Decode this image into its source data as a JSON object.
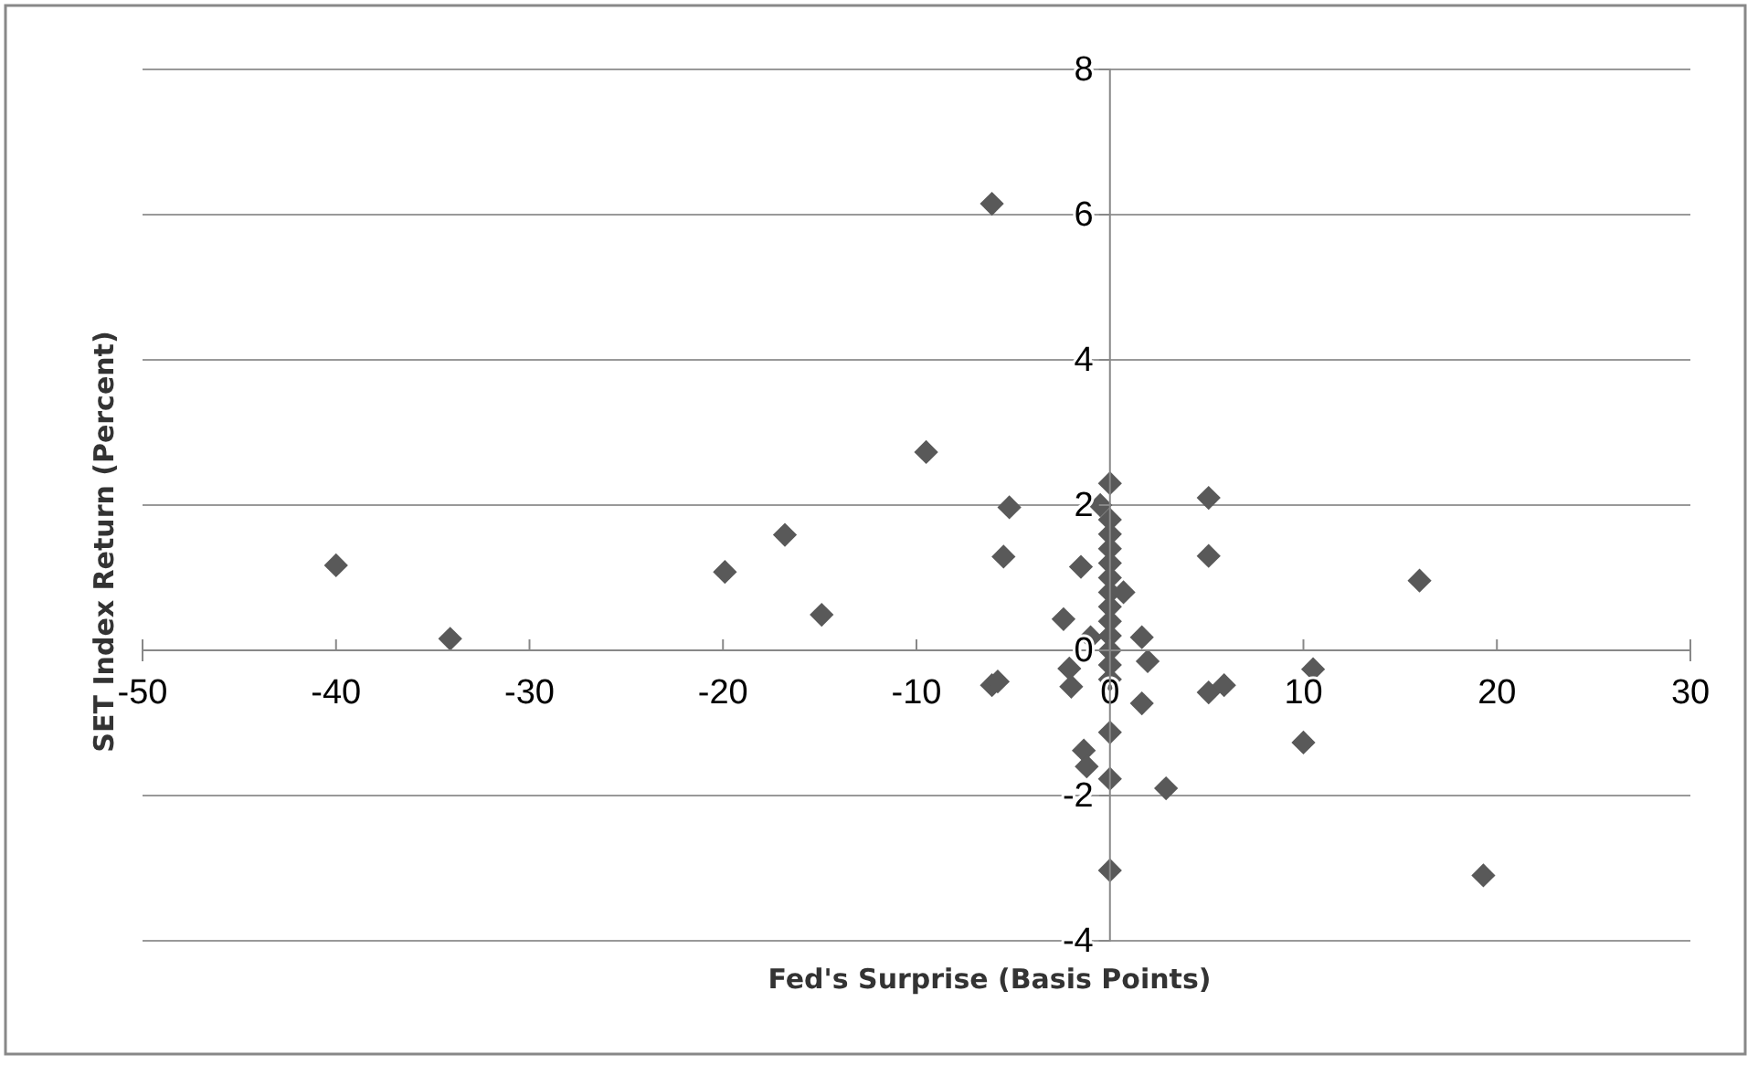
{
  "chart_data": {
    "type": "scatter",
    "xlabel": "Fed's Surprise (Basis Points)",
    "ylabel": "SET Index Return (Percent)",
    "xlim": [
      -50,
      30
    ],
    "xticks": [
      -50,
      -40,
      -30,
      -20,
      -10,
      0,
      10,
      20,
      30
    ],
    "ylim": [
      -4,
      8
    ],
    "yticks": [
      -4,
      -2,
      0,
      2,
      4,
      6,
      8
    ],
    "grid": "y",
    "marker": "diamond",
    "series": [
      {
        "color": "#595959",
        "x": [
          -40,
          -34.1,
          -19.9,
          -16.8,
          -14.9,
          -9.5,
          -6.1,
          -5.2,
          -5.5,
          -6.1,
          -5.8,
          0,
          -0.5,
          5.1,
          5.1,
          -1.5,
          0,
          0,
          0,
          0,
          0,
          0,
          0,
          0,
          0,
          0,
          0,
          0,
          0.7,
          -2.4,
          -1.0,
          1.65,
          1.95,
          -2.1,
          -2.0,
          1.65,
          0,
          -1.35,
          -1.2,
          0,
          2.9,
          0,
          16,
          5.1,
          5.9,
          10.5,
          10.0,
          19.3
        ],
        "values": [
          1.17,
          0.16,
          1.08,
          1.59,
          0.49,
          2.73,
          6.15,
          1.97,
          1.29,
          -0.48,
          -0.43,
          2.3,
          2.0,
          2.1,
          1.3,
          1.15,
          1.8,
          1.6,
          1.4,
          1.2,
          1.0,
          0.8,
          0.6,
          0.4,
          0.2,
          0.0,
          -0.2,
          -0.4,
          0.8,
          0.43,
          0.18,
          0.18,
          -0.15,
          -0.25,
          -0.5,
          -0.73,
          -1.13,
          -1.38,
          -1.6,
          -1.77,
          -1.9,
          -3.03,
          0.96,
          -0.58,
          -0.48,
          -0.26,
          -1.27,
          -3.1
        ]
      }
    ]
  }
}
